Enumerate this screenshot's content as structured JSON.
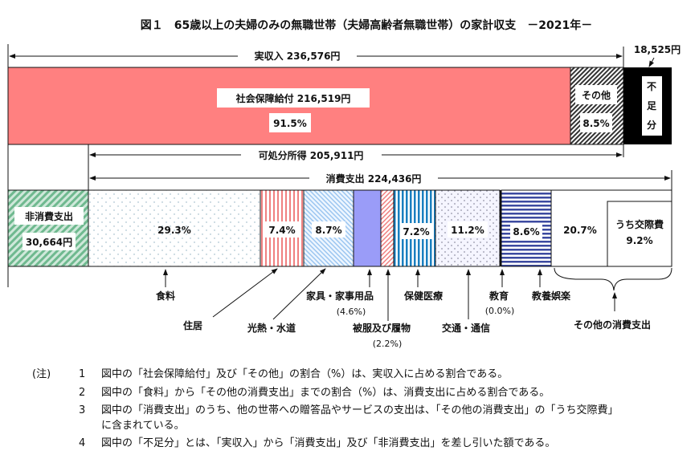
{
  "title": "図１　65歳以上の夫婦のみの無職世帯（夫婦高齢者無職世帯）の家計収支　－2021年－",
  "income": {
    "label": "実収入",
    "value": "236,576円",
    "social_security": {
      "label": "社会保障給付",
      "value": "216,519円",
      "pct": "91.5%",
      "color": "#ff8080"
    },
    "other": {
      "label": "その他",
      "pct": "8.5%"
    },
    "deficit": {
      "label": "不足分",
      "chars": [
        "不",
        "足",
        "分"
      ],
      "value": "18,525円"
    }
  },
  "disposable": {
    "label": "可処分所得",
    "value": "205,911円"
  },
  "consumption": {
    "label": "消費支出",
    "value": "224,436円"
  },
  "non_consumption": {
    "label": "非消費支出",
    "value": "30,664円",
    "color": "#6fb98f"
  },
  "categories": [
    {
      "label": "食料",
      "pct": "29.3%"
    },
    {
      "label": "住居",
      "pct": "7.4%"
    },
    {
      "label": "光熱・水道",
      "pct": "8.7%"
    },
    {
      "label": "家具・家事用品",
      "pct": "(4.6%)"
    },
    {
      "label": "被服及び履物",
      "pct": "(2.2%)"
    },
    {
      "label": "保健医療",
      "pct": "7.2%"
    },
    {
      "label": "交通・通信",
      "pct": "11.2%"
    },
    {
      "label": "教育",
      "pct": "(0.0%)"
    },
    {
      "label": "教養娯楽",
      "pct": "8.6%"
    },
    {
      "label": "その他の消費支出",
      "pct": "20.7%",
      "sub_label": "うち交際費",
      "sub_pct": "9.2%"
    }
  ],
  "notes": {
    "prefix": "(注)",
    "items": [
      {
        "n": "1",
        "text": "図中の「社会保障給付」及び「その他」の割合（%）は、実収入に占める割合である。"
      },
      {
        "n": "2",
        "text": "図中の「食料」から「その他の消費支出」までの割合（%）は、消費支出に占める割合である。"
      },
      {
        "n": "3",
        "text": "図中の「消費支出」のうち、他の世帯への贈答品やサービスの支出は、「その他の消費支出」の「うち交際費」"
      },
      {
        "n": "",
        "text": "に含まれている。"
      },
      {
        "n": "4",
        "text": "図中の「不足分」とは、「実収入」から「消費支出」及び「非消費支出」を差し引いた額である。"
      }
    ]
  }
}
